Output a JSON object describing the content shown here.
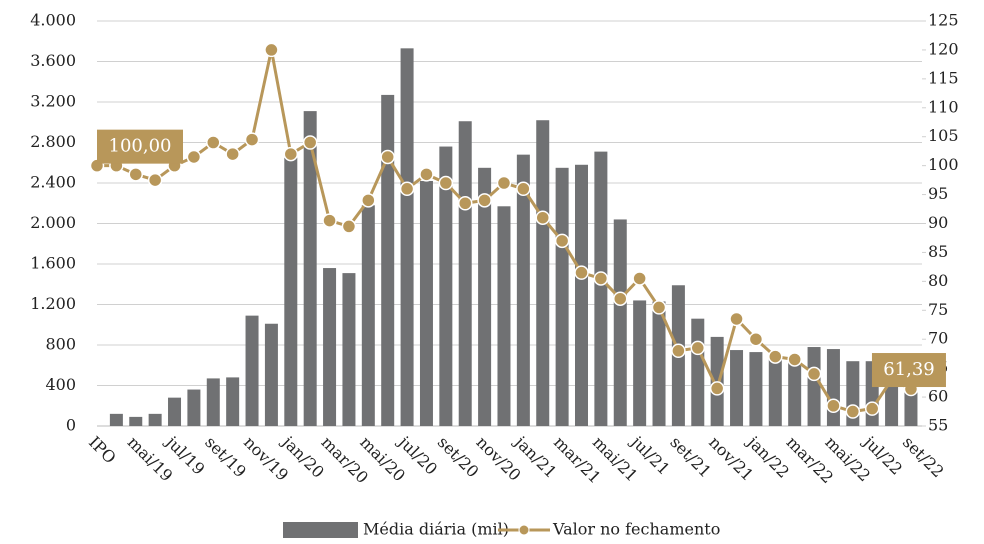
{
  "chart_data": {
    "type": "bar",
    "categories": [
      "IPO",
      null,
      "mai/19",
      null,
      "jul/19",
      null,
      "set/19",
      null,
      "nov/19",
      null,
      "jan/20",
      null,
      "mar/20",
      null,
      "mai/20",
      null,
      "jul/20",
      null,
      "set/20",
      null,
      "nov/20",
      null,
      "jan/21",
      null,
      "mar/21",
      null,
      "mai/21",
      null,
      "jul/21",
      null,
      "set/21",
      null,
      "nov/21",
      null,
      "jan/22",
      null,
      "mar/22",
      null,
      "mai/22",
      null,
      "jul/22",
      null,
      "set/22"
    ],
    "series": [
      {
        "name": "Média diária (mil)",
        "type": "bar",
        "axis": "y",
        "color": "#707173",
        "values": [
          null,
          120,
          90,
          120,
          280,
          360,
          470,
          480,
          1090,
          1010,
          2650,
          3110,
          1560,
          1510,
          2180,
          3270,
          3730,
          2420,
          2760,
          3010,
          2550,
          2170,
          2680,
          3020,
          2550,
          2580,
          2710,
          2040,
          1240,
          1230,
          1390,
          1060,
          880,
          750,
          730,
          690,
          680,
          780,
          760,
          640,
          640,
          520,
          590
        ]
      },
      {
        "name": "Valor no fechamento",
        "type": "line",
        "axis": "y2",
        "color": "#b8975a",
        "values": [
          100,
          100,
          98.5,
          97.5,
          100,
          101.5,
          104,
          102,
          104.5,
          120,
          102,
          104,
          90.5,
          89.5,
          94,
          101.5,
          96,
          98.5,
          97,
          93.5,
          94,
          97,
          96,
          91,
          87,
          81.5,
          80.5,
          77,
          80.5,
          75.5,
          68,
          68.5,
          61.5,
          73.5,
          70,
          67,
          66.5,
          64,
          58.5,
          57.5,
          58,
          63,
          61.39
        ],
        "value_labels": [
          "100,00",
          null,
          null,
          null,
          null,
          null,
          null,
          null,
          null,
          null,
          null,
          null,
          null,
          null,
          null,
          null,
          null,
          null,
          null,
          null,
          null,
          null,
          null,
          null,
          null,
          null,
          null,
          null,
          null,
          null,
          null,
          null,
          null,
          null,
          null,
          null,
          null,
          null,
          null,
          null,
          null,
          null,
          "61,39"
        ]
      }
    ],
    "ylim": [
      0,
      4000
    ],
    "yticks": [
      0,
      400,
      800,
      {
        "value": 1200,
        "label": "1.200"
      },
      {
        "value": 1600,
        "label": "1.600"
      },
      {
        "value": 2000,
        "label": "2.000"
      },
      {
        "value": 2400,
        "label": "2.400"
      },
      {
        "value": 2800,
        "label": "2.800"
      },
      {
        "value": 3200,
        "label": "3.200"
      },
      {
        "value": 3600,
        "label": "3.600"
      },
      {
        "value": 4000,
        "label": "4.000"
      }
    ],
    "y2lim": [
      55,
      125
    ],
    "y2ticks": [
      55,
      60,
      65,
      70,
      75,
      80,
      85,
      90,
      95,
      100,
      105,
      110,
      115,
      120,
      125
    ],
    "grid": true,
    "legend": "bottom"
  }
}
